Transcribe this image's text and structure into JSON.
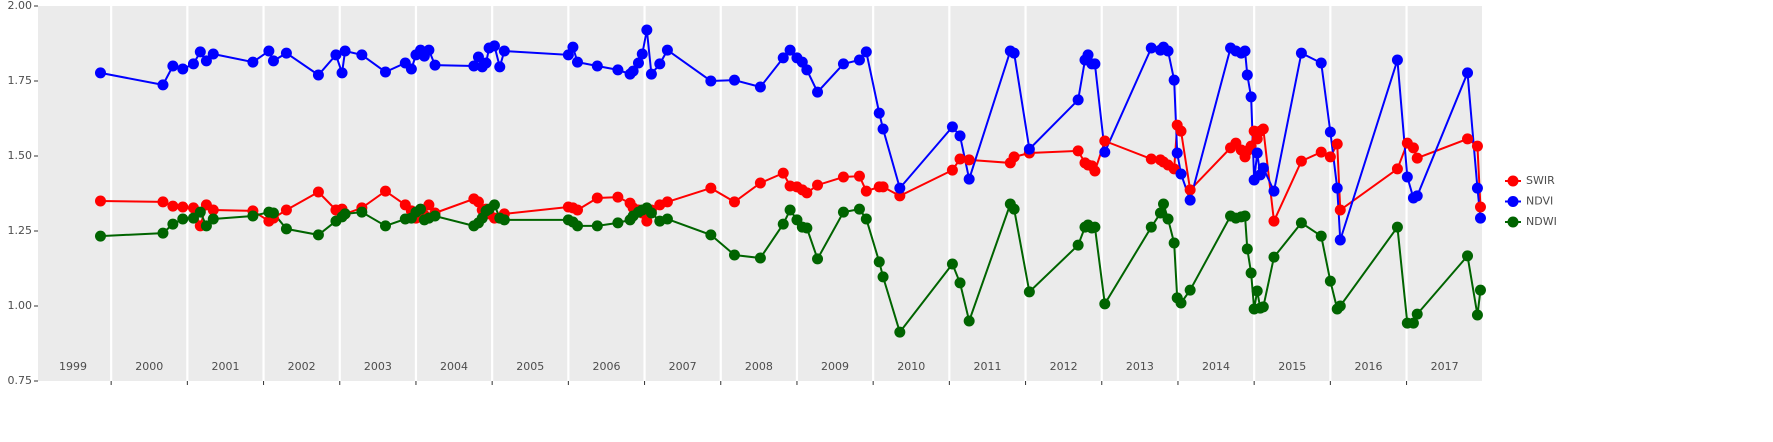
{
  "chart_data": {
    "type": "line",
    "x": [
      1999.86,
      2000.68,
      2000.81,
      2000.94,
      2001.08,
      2001.17,
      2001.25,
      2001.34,
      2001.86,
      2002.07,
      2002.13,
      2002.3,
      2002.72,
      2002.95,
      2003.03,
      2003.07,
      2003.29,
      2003.6,
      2003.86,
      2003.94,
      2004.0,
      2004.06,
      2004.11,
      2004.17,
      2004.25,
      2004.76,
      2004.82,
      2004.87,
      2004.92,
      2004.96,
      2005.03,
      2005.1,
      2005.16,
      2006.0,
      2006.06,
      2006.12,
      2006.38,
      2006.65,
      2006.81,
      2006.85,
      2006.92,
      2006.97,
      2007.03,
      2007.09,
      2007.2,
      2007.3,
      2007.87,
      2008.18,
      2008.52,
      2008.82,
      2008.91,
      2009.0,
      2009.07,
      2009.13,
      2009.27,
      2009.61,
      2009.82,
      2009.91,
      2010.08,
      2010.13,
      2010.35,
      2011.04,
      2011.14,
      2011.26,
      2011.8,
      2011.85,
      2012.05,
      2012.69,
      2012.78,
      2012.82,
      2012.87,
      2012.91,
      2013.04,
      2013.65,
      2013.77,
      2013.81,
      2013.87,
      2013.95,
      2013.99,
      2014.04,
      2014.16,
      2014.69,
      2014.76,
      2014.83,
      2014.88,
      2014.91,
      2014.96,
      2015.0,
      2015.04,
      2015.08,
      2015.12,
      2015.26,
      2015.62,
      2015.88,
      2016.0,
      2016.09,
      2016.13,
      2016.88,
      2017.01,
      2017.09,
      2017.14,
      2017.8,
      2017.93,
      2017.97
    ],
    "series": [
      {
        "name": "SWIR",
        "color": "#ff0000",
        "values": [
          1.35,
          1.347,
          1.333,
          1.33,
          1.327,
          1.267,
          1.337,
          1.32,
          1.317,
          1.283,
          1.293,
          1.32,
          1.38,
          1.32,
          1.323,
          1.307,
          1.327,
          1.383,
          1.337,
          1.317,
          1.293,
          1.31,
          1.303,
          1.337,
          1.31,
          1.357,
          1.347,
          1.32,
          1.323,
          1.307,
          1.293,
          1.293,
          1.307,
          1.33,
          1.327,
          1.32,
          1.36,
          1.363,
          1.343,
          1.327,
          1.32,
          1.31,
          1.283,
          1.32,
          1.337,
          1.347,
          1.393,
          1.347,
          1.41,
          1.443,
          1.4,
          1.397,
          1.387,
          1.377,
          1.403,
          1.43,
          1.433,
          1.383,
          1.397,
          1.397,
          1.367,
          1.453,
          1.49,
          1.487,
          1.477,
          1.497,
          1.51,
          1.517,
          1.477,
          1.47,
          1.467,
          1.45,
          1.55,
          1.49,
          1.487,
          1.48,
          1.47,
          1.457,
          1.603,
          1.583,
          1.387,
          1.527,
          1.543,
          1.52,
          1.497,
          1.517,
          1.533,
          1.583,
          1.557,
          1.583,
          1.59,
          1.283,
          1.483,
          1.513,
          1.497,
          1.54,
          1.32,
          1.457,
          1.543,
          1.527,
          1.493,
          1.557,
          1.533,
          1.33
        ]
      },
      {
        "name": "NDVI",
        "color": "#0000ff",
        "values": [
          1.777,
          1.737,
          1.8,
          1.79,
          1.807,
          1.847,
          1.817,
          1.84,
          1.813,
          1.85,
          1.817,
          1.843,
          1.77,
          1.837,
          1.777,
          1.85,
          1.837,
          1.78,
          1.81,
          1.79,
          1.837,
          1.853,
          1.833,
          1.853,
          1.803,
          1.8,
          1.83,
          1.797,
          1.81,
          1.86,
          1.867,
          1.797,
          1.85,
          1.837,
          1.863,
          1.813,
          1.8,
          1.787,
          1.773,
          1.783,
          1.81,
          1.84,
          1.92,
          1.773,
          1.807,
          1.853,
          1.75,
          1.753,
          1.73,
          1.827,
          1.853,
          1.827,
          1.813,
          1.787,
          1.713,
          1.807,
          1.82,
          1.847,
          1.643,
          1.59,
          1.393,
          1.597,
          1.567,
          1.423,
          1.85,
          1.843,
          1.523,
          1.687,
          1.82,
          1.837,
          1.807,
          1.807,
          1.513,
          1.86,
          1.853,
          1.863,
          1.85,
          1.753,
          1.51,
          1.44,
          1.353,
          1.86,
          1.85,
          1.843,
          1.85,
          1.77,
          1.697,
          1.42,
          1.51,
          1.437,
          1.46,
          1.383,
          1.843,
          1.81,
          1.58,
          1.393,
          1.22,
          1.82,
          1.43,
          1.36,
          1.367,
          1.777,
          1.393,
          1.293
        ]
      },
      {
        "name": "NDWI",
        "color": "#006400",
        "values": [
          1.233,
          1.243,
          1.273,
          1.29,
          1.293,
          1.313,
          1.267,
          1.29,
          1.3,
          1.313,
          1.31,
          1.257,
          1.237,
          1.283,
          1.297,
          1.307,
          1.313,
          1.267,
          1.29,
          1.293,
          1.313,
          1.323,
          1.287,
          1.293,
          1.3,
          1.267,
          1.277,
          1.293,
          1.317,
          1.323,
          1.337,
          1.293,
          1.287,
          1.287,
          1.28,
          1.267,
          1.267,
          1.277,
          1.287,
          1.3,
          1.313,
          1.32,
          1.327,
          1.31,
          1.283,
          1.29,
          1.237,
          1.17,
          1.16,
          1.273,
          1.32,
          1.287,
          1.263,
          1.26,
          1.157,
          1.313,
          1.323,
          1.29,
          1.147,
          1.097,
          0.913,
          1.14,
          1.077,
          0.95,
          1.34,
          1.323,
          1.047,
          1.203,
          1.263,
          1.27,
          1.26,
          1.263,
          1.007,
          1.263,
          1.31,
          1.34,
          1.29,
          1.21,
          1.027,
          1.01,
          1.053,
          1.3,
          1.293,
          1.297,
          1.3,
          1.19,
          1.11,
          0.99,
          1.05,
          0.993,
          0.997,
          1.163,
          1.277,
          1.233,
          1.083,
          0.99,
          1.0,
          1.263,
          0.943,
          0.943,
          0.973,
          1.167,
          0.97,
          1.053
        ]
      }
    ],
    "xlim": [
      1999.04,
      2017.99
    ],
    "ylim": [
      0.75,
      2.0
    ],
    "xticks": [
      {
        "value": 1999.5,
        "label": "1999"
      },
      {
        "value": 2000.5,
        "label": "2000"
      },
      {
        "value": 2001.5,
        "label": "2001"
      },
      {
        "value": 2002.5,
        "label": "2002"
      },
      {
        "value": 2003.5,
        "label": "2003"
      },
      {
        "value": 2004.5,
        "label": "2004"
      },
      {
        "value": 2005.5,
        "label": "2005"
      },
      {
        "value": 2006.5,
        "label": "2006"
      },
      {
        "value": 2007.5,
        "label": "2007"
      },
      {
        "value": 2008.5,
        "label": "2008"
      },
      {
        "value": 2009.5,
        "label": "2009"
      },
      {
        "value": 2010.5,
        "label": "2010"
      },
      {
        "value": 2011.5,
        "label": "2011"
      },
      {
        "value": 2012.5,
        "label": "2012"
      },
      {
        "value": 2013.5,
        "label": "2013"
      },
      {
        "value": 2014.5,
        "label": "2014"
      },
      {
        "value": 2015.5,
        "label": "2015"
      },
      {
        "value": 2016.5,
        "label": "2016"
      },
      {
        "value": 2017.5,
        "label": "2017"
      }
    ],
    "xgrid": [
      2000,
      2001,
      2002,
      2003,
      2004,
      2005,
      2006,
      2007,
      2008,
      2009,
      2010,
      2011,
      2012,
      2013,
      2014,
      2015,
      2016,
      2017
    ],
    "yticks": [
      {
        "value": 0.75,
        "label": "0.75"
      },
      {
        "value": 1,
        "label": "1.00"
      },
      {
        "value": 1.25,
        "label": "1.25"
      },
      {
        "value": 1.5,
        "label": "1.50"
      },
      {
        "value": 1.75,
        "label": "1.75"
      },
      {
        "value": 2,
        "label": "2.00"
      }
    ],
    "grid": "x",
    "legend": "right"
  }
}
